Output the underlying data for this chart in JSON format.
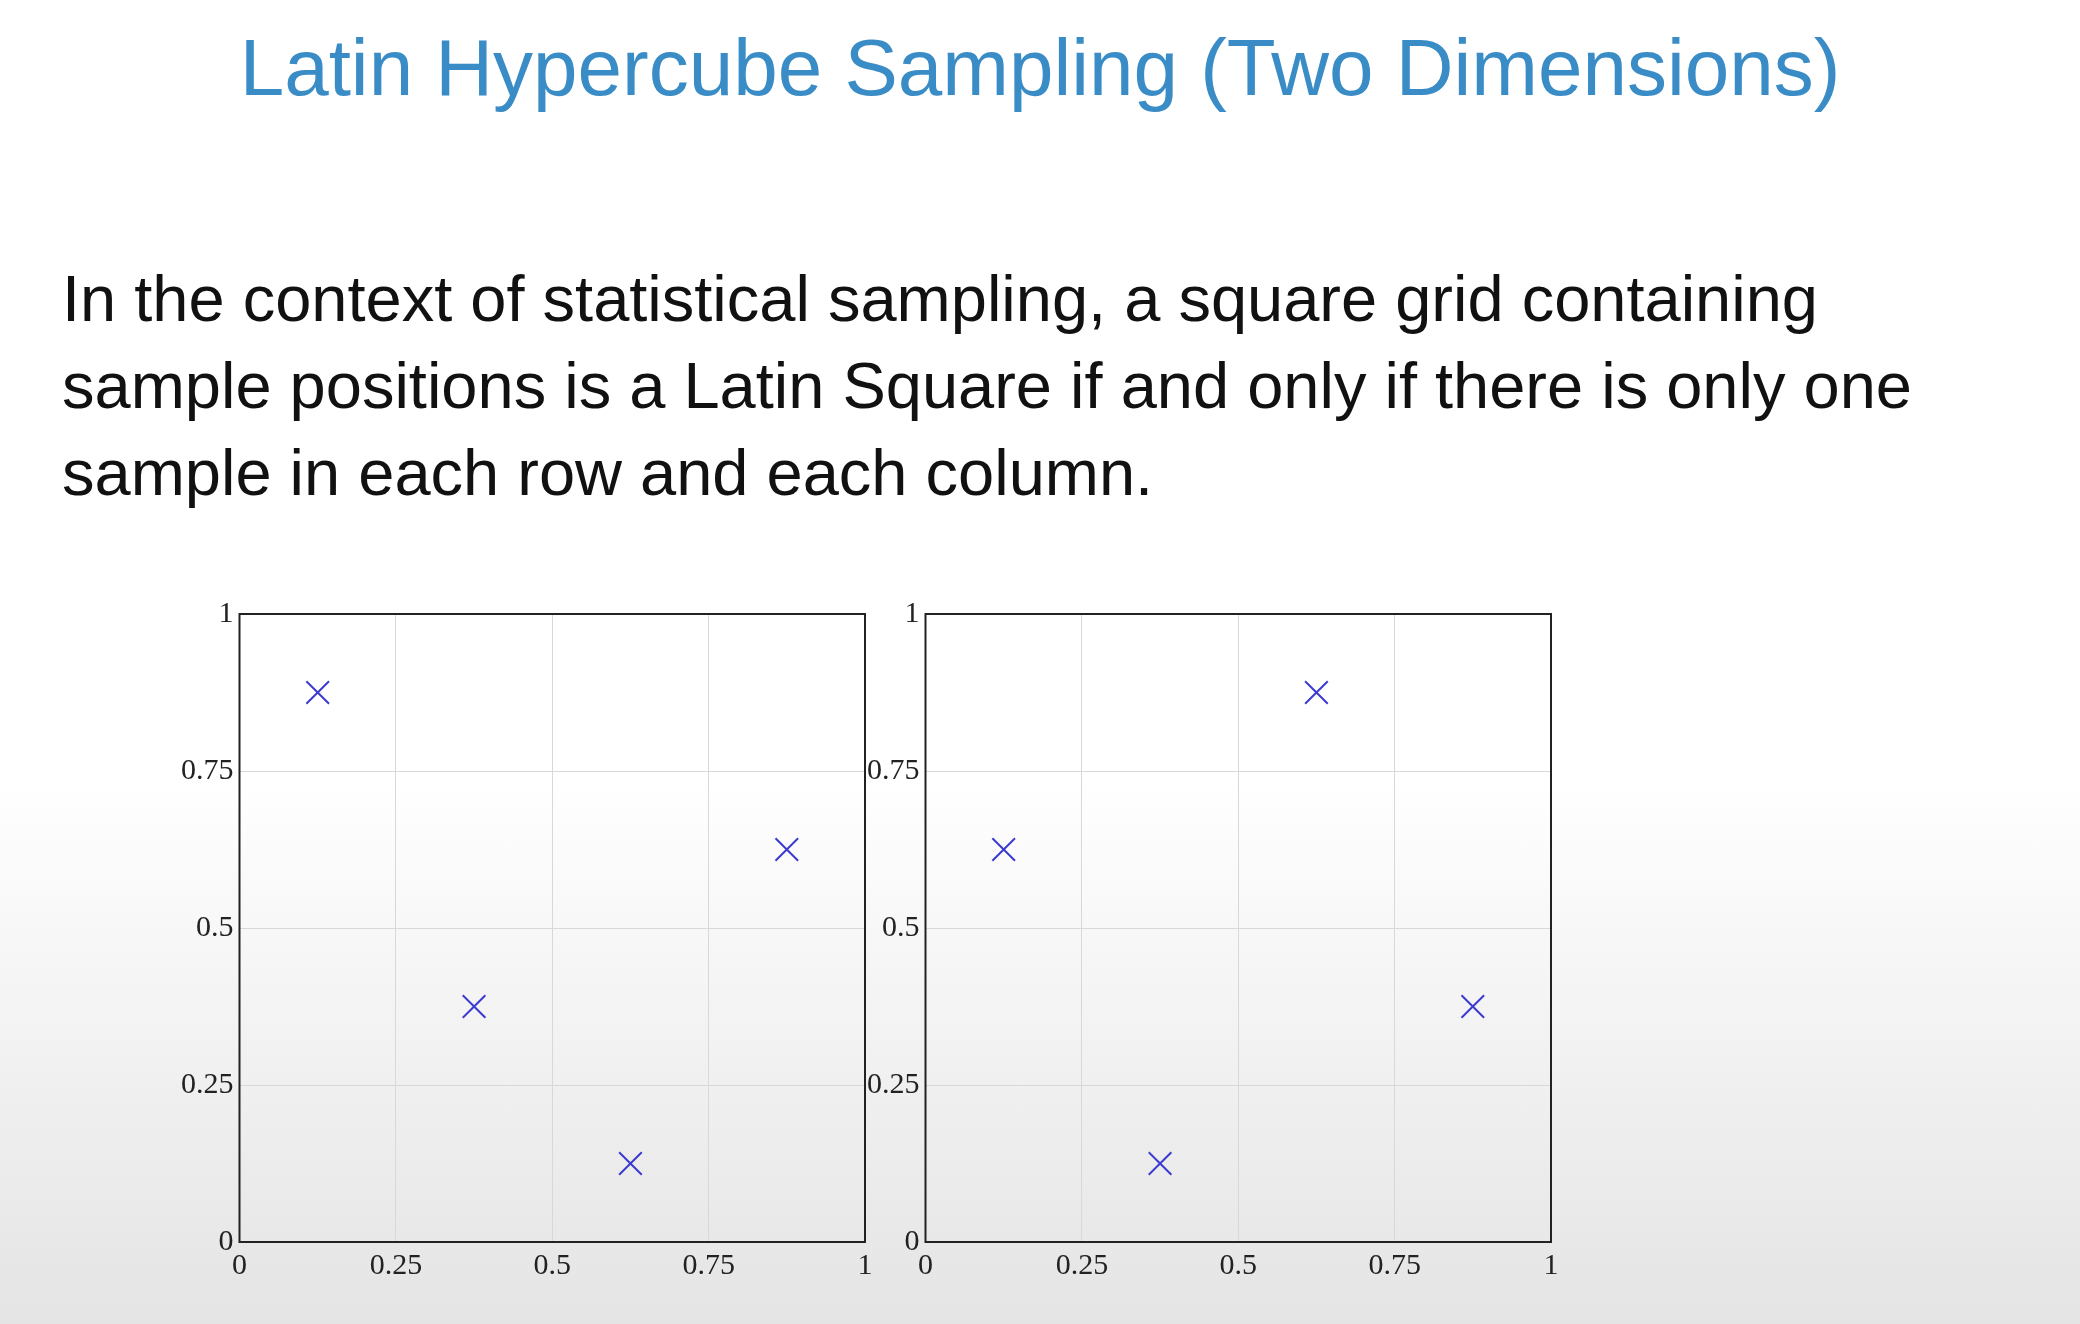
{
  "chart_data": [
    {
      "type": "other",
      "title": "Latin Hypercube Sampling (Two Dimensions)",
      "annotations": [
        "In the context of statistical sampling, a square grid containing sample positions is a Latin Square if and only if there is only one sample in each row and each column."
      ]
    },
    {
      "type": "scatter",
      "x": [
        0.125,
        0.375,
        0.625,
        0.875
      ],
      "series": [
        {
          "color": "#3b3bd0",
          "values": [
            0.875,
            0.375,
            0.125,
            0.625
          ]
        }
      ],
      "xlim": [
        0,
        1
      ],
      "ylim": [
        0,
        1
      ],
      "xticks": [
        0,
        0.25,
        0.5,
        0.75,
        1
      ],
      "yticks": [
        0,
        0.25,
        0.5,
        0.75,
        1
      ],
      "grid": true,
      "marker": "cross"
    },
    {
      "type": "scatter",
      "x": [
        0.125,
        0.375,
        0.625,
        0.875
      ],
      "series": [
        {
          "color": "#3b3bd0",
          "values": [
            0.625,
            0.125,
            0.875,
            0.375
          ]
        }
      ],
      "xlim": [
        0,
        1
      ],
      "ylim": [
        0,
        1
      ],
      "xticks": [
        0,
        0.25,
        0.5,
        0.75,
        1
      ],
      "yticks": [
        0,
        0.25,
        0.5,
        0.75,
        1
      ],
      "grid": true,
      "marker": "cross"
    }
  ]
}
